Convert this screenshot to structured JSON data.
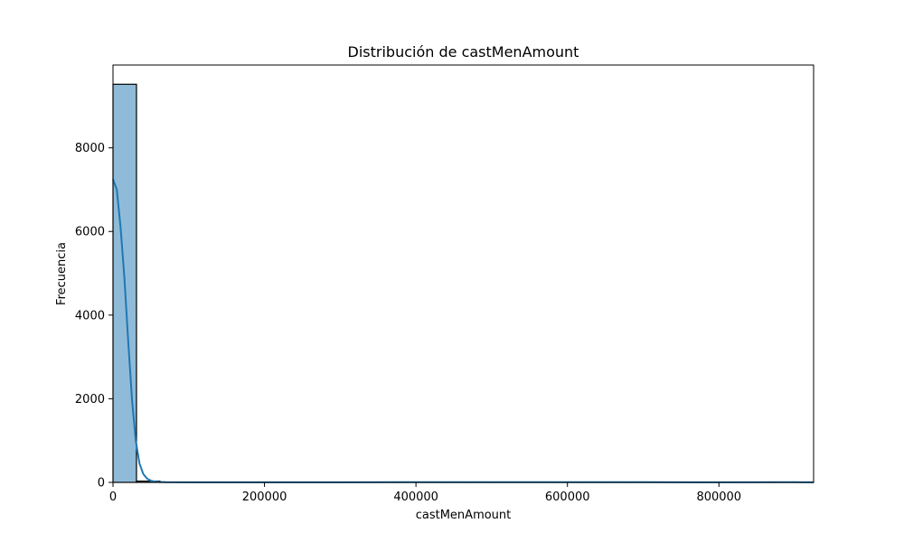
{
  "chart_data": {
    "type": "bar",
    "subtype": "histogram-with-kde",
    "title": "Distribución de castMenAmount",
    "xlabel": "castMenAmount",
    "ylabel": "Frecuencia",
    "xlim": [
      0,
      925000
    ],
    "ylim": [
      0,
      9980
    ],
    "x_ticks": [
      0,
      200000,
      400000,
      600000,
      800000
    ],
    "y_ticks": [
      0,
      2000,
      4000,
      6000,
      8000
    ],
    "grid": false,
    "colors": {
      "bar_fill": "#8fbbd9",
      "bar_edge": "#000000",
      "kde_line": "#1f77b4"
    },
    "bin_width": 31000,
    "bins": [
      {
        "x0": 0,
        "x1": 31000,
        "count": 9520
      },
      {
        "x0": 31000,
        "x1": 62000,
        "count": 30
      },
      {
        "x0": 62000,
        "x1": 93000,
        "count": 8
      },
      {
        "x0": 93000,
        "x1": 124000,
        "count": 5
      },
      {
        "x0": 124000,
        "x1": 155000,
        "count": 4
      },
      {
        "x0": 155000,
        "x1": 186000,
        "count": 3
      },
      {
        "x0": 186000,
        "x1": 217000,
        "count": 2
      },
      {
        "x0": 217000,
        "x1": 248000,
        "count": 2
      },
      {
        "x0": 248000,
        "x1": 279000,
        "count": 1
      },
      {
        "x0": 279000,
        "x1": 310000,
        "count": 1
      },
      {
        "x0": 310000,
        "x1": 341000,
        "count": 1
      },
      {
        "x0": 341000,
        "x1": 372000,
        "count": 1
      },
      {
        "x0": 372000,
        "x1": 403000,
        "count": 1
      },
      {
        "x0": 403000,
        "x1": 434000,
        "count": 1
      },
      {
        "x0": 434000,
        "x1": 465000,
        "count": 1
      },
      {
        "x0": 465000,
        "x1": 496000,
        "count": 1
      },
      {
        "x0": 496000,
        "x1": 527000,
        "count": 1
      },
      {
        "x0": 527000,
        "x1": 558000,
        "count": 1
      },
      {
        "x0": 558000,
        "x1": 589000,
        "count": 1
      },
      {
        "x0": 589000,
        "x1": 620000,
        "count": 1
      },
      {
        "x0": 620000,
        "x1": 651000,
        "count": 1
      },
      {
        "x0": 651000,
        "x1": 682000,
        "count": 1
      },
      {
        "x0": 682000,
        "x1": 713000,
        "count": 1
      },
      {
        "x0": 713000,
        "x1": 744000,
        "count": 1
      },
      {
        "x0": 744000,
        "x1": 775000,
        "count": 1
      },
      {
        "x0": 775000,
        "x1": 806000,
        "count": 1
      },
      {
        "x0": 806000,
        "x1": 837000,
        "count": 1
      },
      {
        "x0": 837000,
        "x1": 868000,
        "count": 1
      },
      {
        "x0": 868000,
        "x1": 899000,
        "count": 1
      },
      {
        "x0": 899000,
        "x1": 930000,
        "count": 1
      }
    ],
    "kde": {
      "x": [
        0,
        5000,
        10000,
        15000,
        20000,
        25000,
        30000,
        35000,
        40000,
        45000,
        50000,
        55000,
        60000,
        70000,
        100000,
        200000,
        300000,
        380000,
        400000,
        500000,
        560000,
        600000,
        700000,
        800000,
        900000,
        925000
      ],
      "y": [
        7250,
        7000,
        6100,
        4900,
        3400,
        2000,
        1000,
        450,
        200,
        90,
        40,
        20,
        10,
        5,
        3,
        2,
        2,
        4,
        5,
        4,
        6,
        5,
        4,
        3,
        4,
        3
      ]
    }
  }
}
